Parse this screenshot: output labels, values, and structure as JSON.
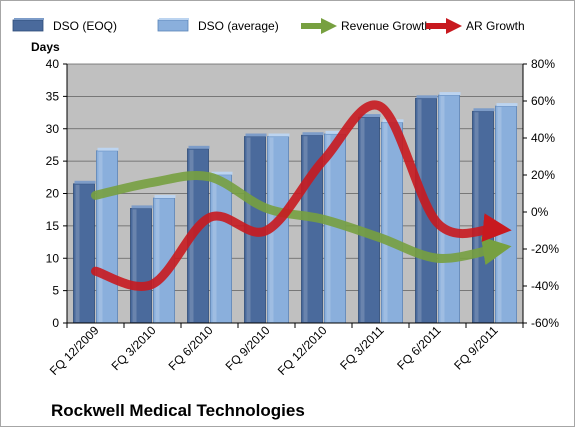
{
  "chart_data": {
    "type": "bar",
    "title": "Rockwell Medical Technologies",
    "categories": [
      "FQ 12/2009",
      "FQ 3/2010",
      "FQ 6/2010",
      "FQ 9/2010",
      "FQ 12/2010",
      "FQ 3/2011",
      "FQ 6/2011",
      "FQ 9/2011"
    ],
    "y_left": {
      "label": "Days",
      "range": [
        0,
        40
      ],
      "ticks": [
        "0",
        "5",
        "10",
        "15",
        "20",
        "25",
        "30",
        "35",
        "40"
      ]
    },
    "y_right": {
      "label": "",
      "range": [
        -60,
        80
      ],
      "ticks": [
        "-60%",
        "-40%",
        "-20%",
        "0%",
        "20%",
        "40%",
        "60%",
        "80%"
      ]
    },
    "series": [
      {
        "name": "DSO (EOQ)",
        "type": "bar",
        "axis": "left",
        "color": "#4a6a9c",
        "values": [
          21.5,
          17.7,
          26.9,
          28.8,
          29,
          31.8,
          34.7,
          32.7
        ]
      },
      {
        "name": "DSO (average)",
        "type": "bar",
        "axis": "left",
        "color": "#8aafdc",
        "values": [
          26.6,
          19.3,
          22.9,
          28.8,
          29.2,
          31,
          35.2,
          33.5
        ]
      },
      {
        "name": "Revenue Growth",
        "type": "line-arrow",
        "axis": "right",
        "color": "#77a040",
        "values": [
          9,
          16,
          19,
          2,
          -4,
          -14,
          -25,
          -20
        ]
      },
      {
        "name": "AR Growth",
        "type": "line-arrow",
        "axis": "right",
        "color": "#c8191f",
        "values": [
          -32,
          -39,
          -3,
          -10,
          28,
          57,
          -6,
          -9
        ]
      }
    ],
    "grid": true,
    "plot_background": "#c0c0c0",
    "legend_position": "top"
  }
}
